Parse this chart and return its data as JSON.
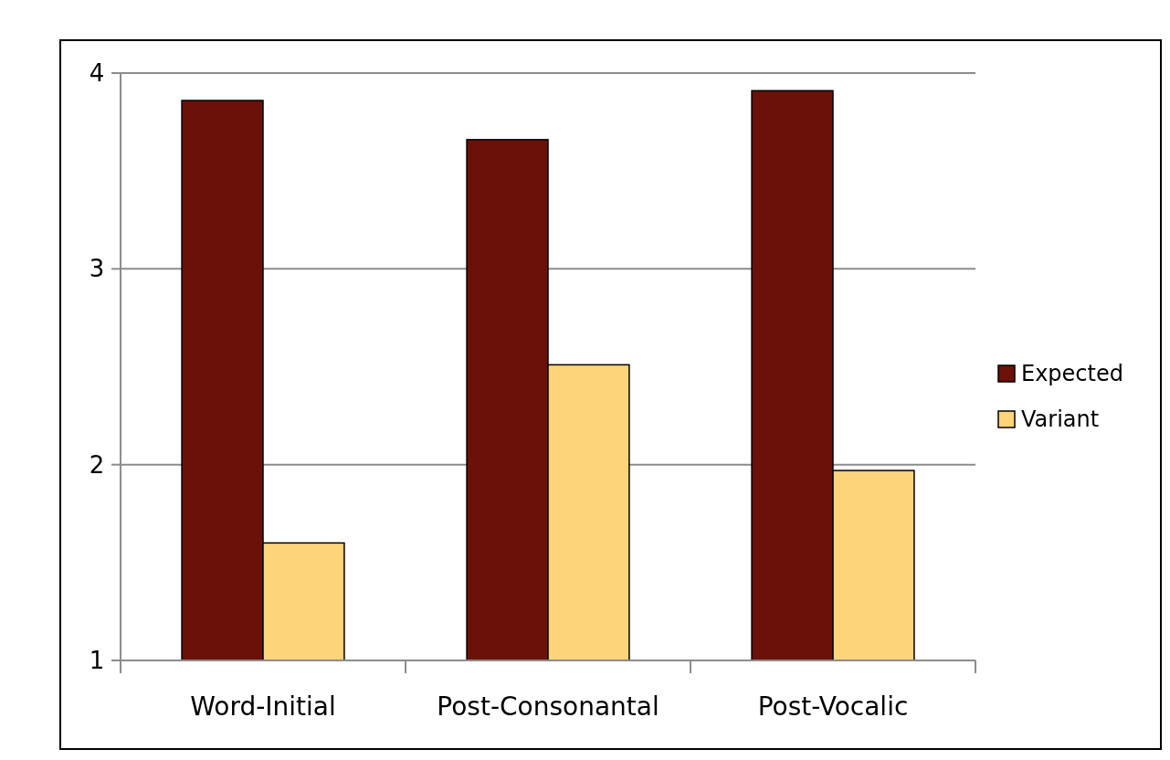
{
  "chart_data": {
    "type": "bar",
    "categories": [
      "Word-Initial",
      "Post-Consonantal",
      "Post-Vocalic"
    ],
    "series": [
      {
        "name": "Expected",
        "color": "#6b1109",
        "values": [
          3.86,
          3.66,
          3.91
        ]
      },
      {
        "name": "Variant",
        "color": "#fed479",
        "values": [
          1.6,
          2.51,
          1.97
        ]
      }
    ],
    "ylim": [
      1,
      4
    ],
    "yticks": [
      1,
      2,
      3,
      4
    ],
    "grid": "y",
    "legend": "right"
  }
}
